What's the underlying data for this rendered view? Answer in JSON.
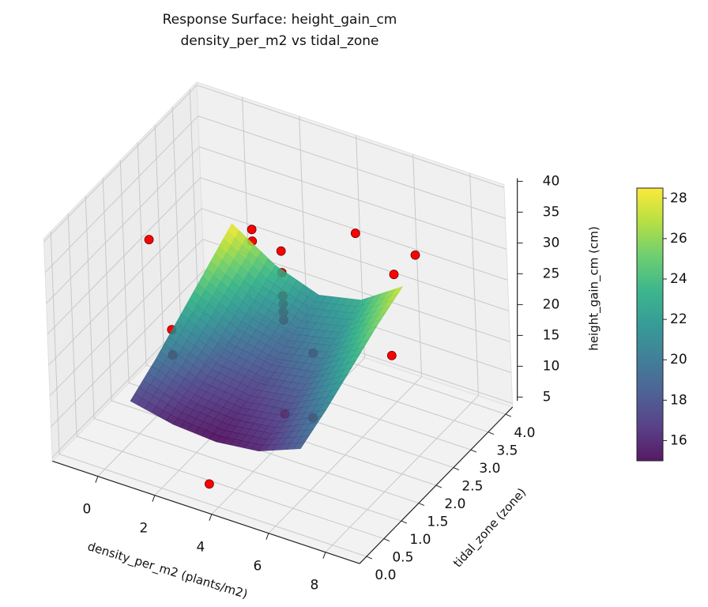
{
  "chart_data": {
    "type": "surface3d",
    "title": "Response Surface: height_gain_cm",
    "subtitle": "density_per_m2 vs tidal_zone",
    "xlabel": "density_per_m2 (plants/m2)",
    "ylabel": "tidal_zone (zone)",
    "zlabel": "height_gain_cm (cm)",
    "xlim": [
      -1.6,
      9.2
    ],
    "ylim": [
      -0.2,
      4.2
    ],
    "zlim": [
      4.4,
      40.5
    ],
    "xticks": [
      0,
      2,
      4,
      6,
      8
    ],
    "yticks": [
      {
        "value": 0,
        "label": "0.0"
      },
      {
        "value": 0.5,
        "label": "0.5"
      },
      {
        "value": 1,
        "label": "1.0"
      },
      {
        "value": 1.5,
        "label": "1.5"
      },
      {
        "value": 2,
        "label": "2.0"
      },
      {
        "value": 2.5,
        "label": "2.5"
      },
      {
        "value": 3,
        "label": "3.0"
      },
      {
        "value": 3.5,
        "label": "3.5"
      },
      {
        "value": 4,
        "label": "4.0"
      }
    ],
    "zticks": [
      5,
      10,
      15,
      20,
      25,
      30,
      35,
      40
    ],
    "grid": true,
    "colormap": "viridis",
    "clim": [
      15,
      28.5
    ],
    "cticks": [
      16,
      18,
      20,
      22,
      24,
      26,
      28
    ],
    "surface": {
      "x": [
        1,
        2.5,
        4,
        5.5,
        7
      ],
      "y": [
        0,
        0.75,
        1.5,
        2.25,
        3
      ],
      "z": [
        [
          17,
          15.5,
          15,
          15.8,
          18.5
        ],
        [
          19.5,
          17,
          16.2,
          17.2,
          20.5
        ],
        [
          22.5,
          19,
          17.8,
          19,
          23
        ],
        [
          25.5,
          21.5,
          19.5,
          21,
          25.5
        ],
        [
          28.5,
          24,
          21.5,
          23,
          27.5
        ]
      ]
    },
    "points": {
      "color": "#ff0000",
      "x": [
        3.7,
        5.2,
        6.2,
        4,
        4,
        4,
        4,
        4,
        4,
        5,
        1.7,
        1.7,
        0,
        0,
        0.6,
        4.1,
        6.2,
        6.7,
        7.8
      ],
      "y": [
        0,
        1,
        1,
        2,
        2,
        2,
        2,
        2,
        2,
        2,
        3,
        3,
        2,
        2,
        1,
        4,
        4,
        3,
        2
      ],
      "z": [
        7.7,
        15.6,
        16.5,
        34.4,
        30.9,
        27.1,
        25.8,
        24.5,
        23.2,
        19.4,
        28.6,
        26.7,
        15.5,
        11.4,
        36.8,
        25.9,
        25.6,
        29,
        23.3
      ]
    }
  }
}
